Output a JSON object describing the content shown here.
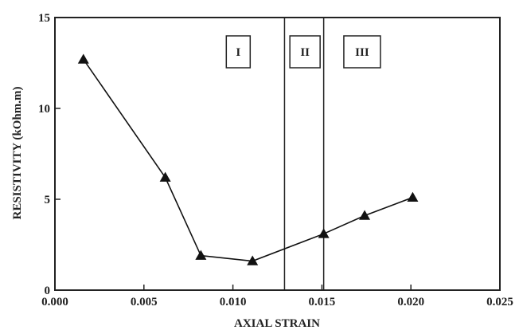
{
  "chart_data": {
    "type": "line",
    "xlabel": "AXIAL STRAIN",
    "ylabel": "RESISTIVITY (kOhm.m)",
    "xlim": [
      0.0,
      0.025
    ],
    "ylim": [
      0,
      15
    ],
    "x_ticks": [
      "0.000",
      "0.005",
      "0.010",
      "0.015",
      "0.020",
      "0.025"
    ],
    "y_ticks": [
      "0",
      "5",
      "10",
      "15"
    ],
    "series": [
      {
        "marker": "triangle",
        "color": "#111111",
        "x": [
          0.0016,
          0.0062,
          0.0082,
          0.0111,
          0.0151,
          0.0174,
          0.0201
        ],
        "y": [
          12.7,
          6.2,
          1.9,
          1.6,
          3.1,
          4.1,
          5.1
        ]
      }
    ],
    "vertical_lines": [
      0.0129,
      0.0151
    ],
    "regions": [
      "I",
      "II",
      "III"
    ],
    "grid": false
  }
}
